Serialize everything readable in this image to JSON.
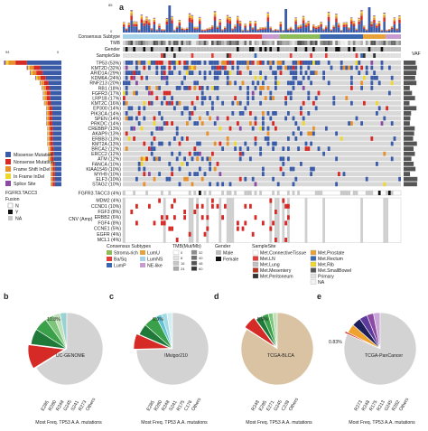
{
  "panels": {
    "a": "a",
    "b": "b",
    "c": "c",
    "d": "d",
    "e": "e"
  },
  "top": {
    "track_labels": [
      "Consensus Subtype",
      "TMB",
      "Gender",
      "SampleSite"
    ],
    "ymax_left": "94",
    "ymax_top": "85",
    "ymin": "0",
    "vaf_label": "VAF"
  },
  "genes": [
    {
      "name": "TP53",
      "pct": "(53%)"
    },
    {
      "name": "KMT2D",
      "pct": "(32%)"
    },
    {
      "name": "ARID1A",
      "pct": "(29%)"
    },
    {
      "name": "KDM6A",
      "pct": "(24%)"
    },
    {
      "name": "RNF213",
      "pct": "(20%)"
    },
    {
      "name": "RB1",
      "pct": "(18%)"
    },
    {
      "name": "FGFR3",
      "pct": "(17%)"
    },
    {
      "name": "LRP1B",
      "pct": "(17%)"
    },
    {
      "name": "KMT2C",
      "pct": "(16%)"
    },
    {
      "name": "EP300",
      "pct": "(14%)"
    },
    {
      "name": "PIK3CA",
      "pct": "(14%)"
    },
    {
      "name": "SPEN",
      "pct": "(14%)"
    },
    {
      "name": "PRKDC",
      "pct": "(14%)"
    },
    {
      "name": "CREBBP",
      "pct": "(13%)"
    },
    {
      "name": "AKAP9",
      "pct": "(13%)"
    },
    {
      "name": "ERBB3",
      "pct": "(13%)"
    },
    {
      "name": "KMT2A",
      "pct": "(13%)"
    },
    {
      "name": "BRCA2",
      "pct": "(12%)"
    },
    {
      "name": "ERCC2",
      "pct": "(12%)"
    },
    {
      "name": "ATM",
      "pct": "(12%)"
    },
    {
      "name": "FANCA",
      "pct": "(10%)"
    },
    {
      "name": "KIAA1549",
      "pct": "(10%)"
    },
    {
      "name": "MYH9",
      "pct": "(10%)"
    },
    {
      "name": "ELF3",
      "pct": "(10%)"
    },
    {
      "name": "STAG2",
      "pct": "(10%)"
    }
  ],
  "mutation_legend": [
    {
      "label": "Missense Mutation",
      "color": "#3a5ba8"
    },
    {
      "label": "Nonsense Mutation",
      "color": "#d62a26"
    },
    {
      "label": "Frame Shift InDel",
      "color": "#e7902c"
    },
    {
      "label": "In Frame InDel",
      "color": "#efd82e"
    },
    {
      "label": "Splice Site",
      "color": "#8b4ba3"
    }
  ],
  "fusion": {
    "row": "FGFR3.TACC3 (4%)",
    "title": "FGFR3.TACC3",
    "subtitle": "Fusion",
    "items": [
      "N",
      "Y",
      "NA"
    ]
  },
  "cnv": {
    "label": "CNV (Amp)",
    "genes": [
      {
        "name": "MDM2",
        "pct": "(4%)"
      },
      {
        "name": "CCND1",
        "pct": "(10%)"
      },
      {
        "name": "FGF3",
        "pct": "(8%)"
      },
      {
        "name": "ERBB2",
        "pct": "(6%)"
      },
      {
        "name": "FGF4",
        "pct": "(8%)"
      },
      {
        "name": "CCNE1",
        "pct": "(5%)"
      },
      {
        "name": "EGFR",
        "pct": "(4%)"
      },
      {
        "name": "MCL1",
        "pct": "(4%)"
      }
    ]
  },
  "legends": {
    "consensus": {
      "title": "Consensus Subtypes",
      "items": [
        {
          "label": "Stroma-rich",
          "color": "#8fbc5a"
        },
        {
          "label": "Ba/Sq",
          "color": "#e23d3a"
        },
        {
          "label": "LumP",
          "color": "#3b67b0"
        },
        {
          "label": "LumU",
          "color": "#e8a23a"
        },
        {
          "label": "LumNS",
          "color": "#a6d3ea"
        },
        {
          "label": "NE-like",
          "color": "#c79ad0"
        }
      ]
    },
    "tmb": {
      "title": "TMB(Mut/Mb)",
      "items": [
        "0",
        "8",
        "16",
        "24",
        "32",
        "40",
        "48",
        "60"
      ]
    },
    "gender": {
      "title": "Gender",
      "items": [
        {
          "label": "Male",
          "color": "#bdbdbd"
        },
        {
          "label": "Female",
          "color": "#111111"
        }
      ]
    },
    "site": {
      "title": "SampleSite",
      "items": [
        {
          "label": "Met.ConnectiveTissue",
          "color": "#ffffff"
        },
        {
          "label": "Met.LN",
          "color": "#e23d3a"
        },
        {
          "label": "Met.Lung",
          "color": "#c0c0c0"
        },
        {
          "label": "Met.Mesentery",
          "color": "#b7321f"
        },
        {
          "label": "Met.Peritoneum",
          "color": "#333333"
        },
        {
          "label": "Met.Prostate",
          "color": "#e8a23a"
        },
        {
          "label": "Met.Rectum",
          "color": "#3b67b0"
        },
        {
          "label": "Met.Rib",
          "color": "#efd82e"
        },
        {
          "label": "Met.SmallBowel",
          "color": "#555555"
        },
        {
          "label": "Primary",
          "color": "#e0e0e0"
        },
        {
          "label": "NA",
          "color": "#f2f2f2"
        }
      ]
    }
  },
  "pies": [
    {
      "id": "b",
      "dataset": "UC-GENOME",
      "pct": "10.8%",
      "labels": [
        "E285",
        "R280",
        "R248",
        "G245",
        "S241",
        "R273",
        "Others"
      ],
      "xlabel": "Most Freq. TP53 A.A. mutations"
    },
    {
      "id": "c",
      "dataset": "IMvigor210",
      "pct": "6.9%",
      "labels": [
        "E285",
        "R280",
        "R248",
        "S241",
        "R175",
        "C176",
        "Others"
      ],
      "xlabel": "Most Freq. TP53 A.A. mutations"
    },
    {
      "id": "d",
      "dataset": "TCGA-BLCA",
      "pct": "5.9%",
      "labels": [
        "R248",
        "E285",
        "E271",
        "G245",
        "C238",
        "Others"
      ],
      "xlabel": "Most Freq. TP53 A.A. mutations"
    },
    {
      "id": "e",
      "dataset": "TCGA-PanCancer",
      "pct": "0.83%",
      "labels": [
        "R273",
        "R248",
        "R175",
        "R213",
        "G245",
        "R282",
        "Others"
      ],
      "xlabel": "Most Freq. TP53 A.A. mutations"
    }
  ],
  "chart_data": [
    {
      "type": "pie",
      "title": "UC-GENOME",
      "categories": [
        "E285",
        "R280",
        "R248",
        "G245",
        "S241",
        "R273",
        "Others"
      ],
      "values": [
        10.8,
        7,
        6,
        4,
        3,
        3,
        66.2
      ],
      "colors": [
        "#d62a26",
        "#1f7a3a",
        "#3aa14a",
        "#7cc57a",
        "#bfe0b8",
        "#9ad1d4",
        "#d3d3d3"
      ]
    },
    {
      "type": "pie",
      "title": "IMvigor210",
      "categories": [
        "E285",
        "R280",
        "R248",
        "S241",
        "R175",
        "C176",
        "Others"
      ],
      "values": [
        6.9,
        5,
        6,
        2.5,
        2.5,
        2.5,
        74.6
      ],
      "colors": [
        "#d62a26",
        "#1f7a3a",
        "#3aa14a",
        "#62c3d6",
        "#a3dce4",
        "#d4eef2",
        "#d3d3d3"
      ]
    },
    {
      "type": "pie",
      "title": "TCGA-BLCA",
      "categories": [
        "R248",
        "E285",
        "E271",
        "G245",
        "C238",
        "Others"
      ],
      "values": [
        5.9,
        3,
        3,
        2,
        2,
        84.1
      ],
      "colors": [
        "#d62a26",
        "#1f7a3a",
        "#3aa14a",
        "#7cc57a",
        "#bfe0b8",
        "#d9c3a3"
      ]
    },
    {
      "type": "pie",
      "title": "TCGA-PanCancer",
      "categories": [
        "R273",
        "R248",
        "R175",
        "R213",
        "G245",
        "R282",
        "Others"
      ],
      "values": [
        0.83,
        4,
        4,
        3.5,
        3,
        3,
        81.67
      ],
      "colors": [
        "#d62a26",
        "#efa22e",
        "#1c1f5a",
        "#5d3a9b",
        "#8b4ba3",
        "#c9a5da",
        "#d3d3d3"
      ]
    }
  ]
}
